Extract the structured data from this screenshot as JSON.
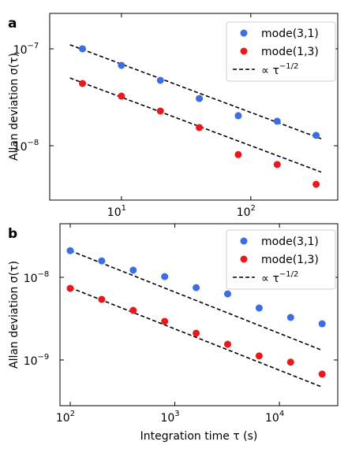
{
  "chart_data": [
    {
      "type": "scatter",
      "panel_label": "a",
      "ylabel": "Allan deviation σ(τ)",
      "x": [
        5,
        10,
        20,
        40,
        80,
        160,
        320
      ],
      "series": [
        {
          "name": "mode(3,1)",
          "color": "#3b6ee0",
          "values": [
            1e-07,
            6.75e-08,
            4.73e-08,
            3.07e-08,
            2.04e-08,
            1.79e-08,
            1.28e-08
          ]
        },
        {
          "name": "mode(1,3)",
          "color": "#e8191a",
          "values": [
            4.39e-08,
            3.25e-08,
            2.28e-08,
            1.54e-08,
            8.1e-09,
            6.4e-09,
            4e-09
          ]
        }
      ],
      "fits": [
        {
          "color": "#000000",
          "x": [
            4,
            350
          ],
          "values": [
            1.1e-07,
            1.18e-08
          ]
        },
        {
          "color": "#000000",
          "x": [
            4,
            350
          ],
          "values": [
            5e-08,
            5.35e-09
          ]
        }
      ],
      "fit_label": {
        "text": "∝ τ",
        "exponent": "−1/2"
      },
      "xlim": [
        2.79,
        470
      ],
      "ylim": [
        2.75e-09,
        2.32e-07
      ],
      "xticks": [
        {
          "value": 10,
          "label": "10",
          "exponent": "1"
        },
        {
          "value": 100,
          "label": "10",
          "exponent": "2"
        }
      ],
      "yticks": [
        {
          "value": 1e-08,
          "label": "10",
          "exponent": "−8"
        },
        {
          "value": 1e-07,
          "label": "10",
          "exponent": "−7"
        }
      ],
      "log_x": true,
      "log_y": true,
      "legend": "upper right"
    },
    {
      "type": "scatter",
      "panel_label": "b",
      "ylabel": "Allan deviation σ(τ)",
      "xlabel": "Integration time τ (s)",
      "x": [
        100,
        200,
        400,
        800,
        1600,
        3200,
        6400,
        12800,
        25600
      ],
      "series": [
        {
          "name": "mode(3,1)",
          "color": "#3b6ee0",
          "values": [
            2.1e-08,
            1.58e-08,
            1.22e-08,
            1.02e-08,
            7.5e-09,
            6.3e-09,
            4.25e-09,
            3.27e-09,
            2.74e-09
          ]
        },
        {
          "name": "mode(1,3)",
          "color": "#e8191a",
          "values": [
            7.35e-09,
            5.4e-09,
            3.98e-09,
            2.93e-09,
            2.11e-09,
            1.55e-09,
            1.12e-09,
            9.4e-10,
            6.75e-10
          ]
        }
      ],
      "fits": [
        {
          "color": "#000000",
          "x": [
            100,
            25600
          ],
          "values": [
            2.1e-08,
            1.31e-09
          ]
        },
        {
          "color": "#000000",
          "x": [
            100,
            25600
          ],
          "values": [
            7.5e-09,
            4.7e-10
          ]
        }
      ],
      "fit_label": {
        "text": "∝ τ",
        "exponent": "−1/2"
      },
      "xlim": [
        79.8,
        36100
      ],
      "ylim": [
        2.8e-10,
        4.45e-08
      ],
      "xticks": [
        {
          "value": 100,
          "label": "10",
          "exponent": "2"
        },
        {
          "value": 1000,
          "label": "10",
          "exponent": "3"
        },
        {
          "value": 10000,
          "label": "10",
          "exponent": "4"
        }
      ],
      "yticks": [
        {
          "value": 1e-09,
          "label": "10",
          "exponent": "−9"
        },
        {
          "value": 1e-08,
          "label": "10",
          "exponent": "−8"
        }
      ],
      "log_x": true,
      "log_y": true,
      "legend": "upper right"
    }
  ]
}
